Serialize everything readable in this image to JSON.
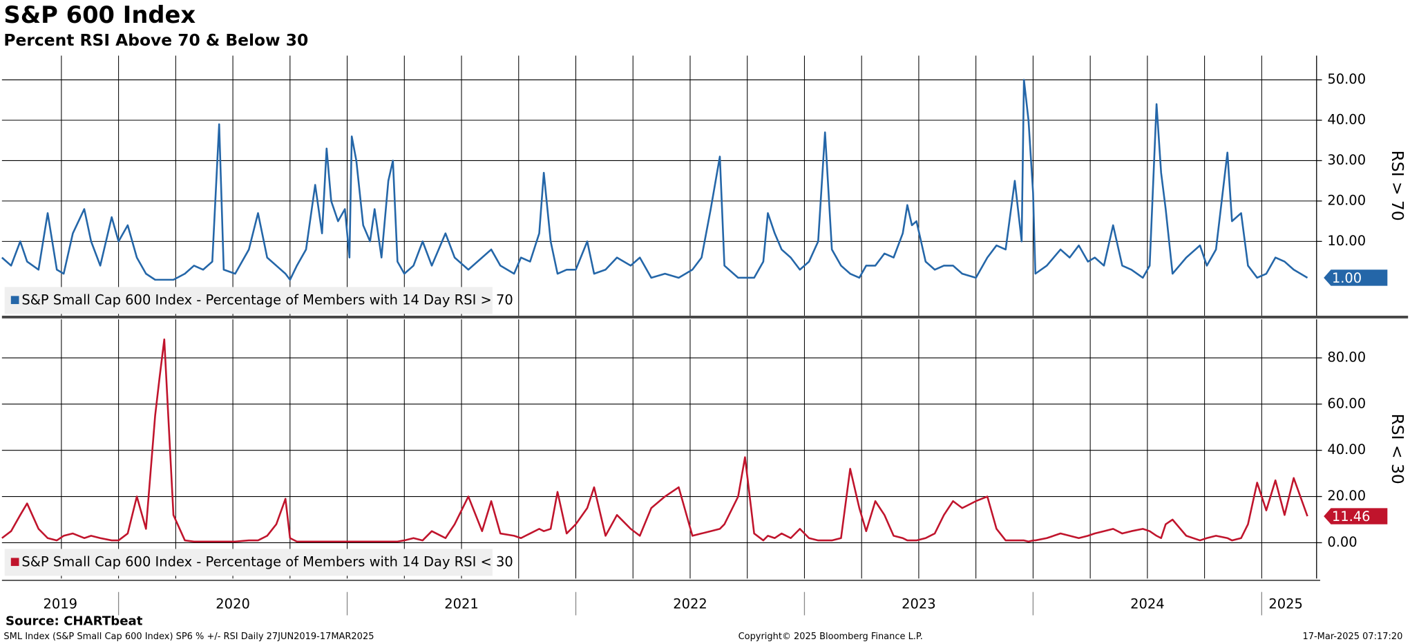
{
  "chart_data": [
    {
      "type": "line",
      "title": "S&P 600 Index",
      "subtitle": "Percent RSI Above 70 & Below 30",
      "ylabel": "RSI > 70",
      "xlim": [
        2019.49,
        2025.24
      ],
      "xgrid": [
        2019.75,
        2020.0,
        2020.25,
        2020.5,
        2020.75,
        2021.0,
        2021.25,
        2021.5,
        2021.75,
        2022.0,
        2022.25,
        2022.5,
        2022.75,
        2023.0,
        2023.25,
        2023.5,
        2023.75,
        2024.0,
        2024.25,
        2024.5,
        2024.75,
        2025.0
      ],
      "ylim": [
        -8.4,
        56
      ],
      "yticks": [
        {
          "value": 10,
          "label": "10.00"
        },
        {
          "value": 20,
          "label": "20.00"
        },
        {
          "value": 30,
          "label": "30.00"
        },
        {
          "value": 40,
          "label": "40.00"
        },
        {
          "value": 50,
          "label": "50.00"
        }
      ],
      "grid": true,
      "x": [
        2019.49,
        2019.53,
        2019.57,
        2019.6,
        2019.65,
        2019.69,
        2019.73,
        2019.76,
        2019.8,
        2019.85,
        2019.88,
        2019.92,
        2019.97,
        2020.0,
        2020.04,
        2020.08,
        2020.12,
        2020.16,
        2020.18,
        2020.2,
        2020.22,
        2020.24,
        2020.29,
        2020.33,
        2020.37,
        2020.41,
        2020.44,
        2020.46,
        2020.51,
        2020.57,
        2020.61,
        2020.65,
        2020.69,
        2020.73,
        2020.75,
        2020.78,
        2020.82,
        2020.86,
        2020.89,
        2020.91,
        2020.93,
        2020.96,
        2020.99,
        2021.01,
        2021.02,
        2021.04,
        2021.07,
        2021.1,
        2021.12,
        2021.15,
        2021.18,
        2021.2,
        2021.22,
        2021.25,
        2021.29,
        2021.33,
        2021.37,
        2021.43,
        2021.47,
        2021.53,
        2021.59,
        2021.63,
        2021.67,
        2021.73,
        2021.76,
        2021.8,
        2021.84,
        2021.86,
        2021.89,
        2021.92,
        2021.96,
        2022.0,
        2022.05,
        2022.08,
        2022.13,
        2022.18,
        2022.24,
        2022.28,
        2022.33,
        2022.39,
        2022.45,
        2022.51,
        2022.55,
        2022.59,
        2022.63,
        2022.65,
        2022.71,
        2022.74,
        2022.78,
        2022.82,
        2022.84,
        2022.87,
        2022.9,
        2022.94,
        2022.98,
        2023.02,
        2023.06,
        2023.09,
        2023.12,
        2023.16,
        2023.2,
        2023.24,
        2023.27,
        2023.31,
        2023.35,
        2023.39,
        2023.43,
        2023.45,
        2023.47,
        2023.49,
        2023.53,
        2023.57,
        2023.61,
        2023.65,
        2023.69,
        2023.75,
        2023.8,
        2023.84,
        2023.88,
        2023.92,
        2023.95,
        2023.96,
        2023.98,
        2024.0,
        2024.01,
        2024.06,
        2024.12,
        2024.16,
        2024.2,
        2024.24,
        2024.27,
        2024.31,
        2024.35,
        2024.39,
        2024.43,
        2024.48,
        2024.51,
        2024.54,
        2024.56,
        2024.58,
        2024.61,
        2024.67,
        2024.73,
        2024.76,
        2024.8,
        2024.85,
        2024.87,
        2024.91,
        2024.94,
        2024.98,
        2025.02,
        2025.06,
        2025.1,
        2025.14,
        2025.2
      ],
      "series": [
        {
          "name": "S&P Small Cap 600 Index - Percentage of Members with 14 Day RSI > 70",
          "color": "#2466a8",
          "last_label": "1.00",
          "values": [
            6,
            4,
            10,
            5,
            3,
            17,
            3,
            2,
            12,
            18,
            10,
            4,
            16,
            10,
            14,
            6,
            2,
            0.5,
            0.5,
            0.5,
            0.5,
            0.5,
            2,
            4,
            3,
            5,
            39,
            3,
            2,
            8,
            17,
            6,
            4,
            2,
            0.5,
            4,
            8,
            24,
            12,
            33,
            20,
            15,
            18,
            6,
            36,
            30,
            14,
            10,
            18,
            6,
            25,
            30,
            5,
            2,
            4,
            10,
            4,
            12,
            6,
            3,
            6,
            8,
            4,
            2,
            6,
            5,
            12,
            27,
            10,
            2,
            3,
            3,
            10,
            2,
            3,
            6,
            4,
            6,
            1,
            2,
            1,
            3,
            6,
            18,
            31,
            4,
            1,
            1,
            1,
            5,
            17,
            12,
            8,
            6,
            3,
            5,
            10,
            37,
            8,
            4,
            2,
            1,
            4,
            4,
            7,
            6,
            12,
            19,
            14,
            15,
            5,
            3,
            4,
            4,
            2,
            1,
            6,
            9,
            8,
            25,
            10,
            50,
            40,
            22,
            2,
            4,
            8,
            6,
            9,
            5,
            6,
            4,
            14,
            4,
            3,
            1,
            4,
            44,
            27,
            18,
            2,
            6,
            9,
            4,
            8,
            32,
            15,
            17,
            4,
            1,
            2,
            6,
            5,
            3,
            1
          ]
        }
      ]
    },
    {
      "type": "line",
      "ylabel": "RSI < 30",
      "xlim": [
        2019.49,
        2025.24
      ],
      "xgrid": [
        2019.75,
        2020.0,
        2020.25,
        2020.5,
        2020.75,
        2021.0,
        2021.25,
        2021.5,
        2021.75,
        2022.0,
        2022.25,
        2022.5,
        2022.75,
        2023.0,
        2023.25,
        2023.5,
        2023.75,
        2024.0,
        2024.25,
        2024.5,
        2024.75,
        2025.0
      ],
      "xticks": [
        {
          "value": 2019.745,
          "label": "2019"
        },
        {
          "value": 2020.5,
          "label": "2020"
        },
        {
          "value": 2021.5,
          "label": "2021"
        },
        {
          "value": 2022.5,
          "label": "2022"
        },
        {
          "value": 2023.5,
          "label": "2023"
        },
        {
          "value": 2024.5,
          "label": "2024"
        },
        {
          "value": 2025.105,
          "label": "2025"
        }
      ],
      "ylim": [
        -15.5,
        96.7
      ],
      "yticks": [
        {
          "value": 0,
          "label": "0.00"
        },
        {
          "value": 20,
          "label": "20.00"
        },
        {
          "value": 40,
          "label": "40.00"
        },
        {
          "value": 60,
          "label": "60.00"
        },
        {
          "value": 80,
          "label": "80.00"
        }
      ],
      "grid": true,
      "x": [
        2019.49,
        2019.53,
        2019.57,
        2019.6,
        2019.65,
        2019.69,
        2019.73,
        2019.76,
        2019.8,
        2019.85,
        2019.88,
        2019.92,
        2019.97,
        2020.0,
        2020.04,
        2020.08,
        2020.12,
        2020.16,
        2020.18,
        2020.2,
        2020.22,
        2020.24,
        2020.29,
        2020.33,
        2020.37,
        2020.41,
        2020.44,
        2020.46,
        2020.51,
        2020.57,
        2020.61,
        2020.65,
        2020.69,
        2020.73,
        2020.75,
        2020.78,
        2020.82,
        2020.86,
        2020.89,
        2020.91,
        2020.93,
        2020.96,
        2020.99,
        2021.01,
        2021.02,
        2021.04,
        2021.07,
        2021.1,
        2021.12,
        2021.15,
        2021.18,
        2021.2,
        2021.22,
        2021.25,
        2021.29,
        2021.33,
        2021.37,
        2021.43,
        2021.47,
        2021.53,
        2021.59,
        2021.63,
        2021.67,
        2021.73,
        2021.76,
        2021.8,
        2021.84,
        2021.86,
        2021.89,
        2021.92,
        2021.96,
        2022.0,
        2022.05,
        2022.08,
        2022.13,
        2022.18,
        2022.24,
        2022.28,
        2022.33,
        2022.39,
        2022.45,
        2022.51,
        2022.55,
        2022.59,
        2022.63,
        2022.65,
        2022.71,
        2022.74,
        2022.78,
        2022.82,
        2022.84,
        2022.87,
        2022.9,
        2022.94,
        2022.98,
        2023.02,
        2023.06,
        2023.09,
        2023.12,
        2023.16,
        2023.2,
        2023.24,
        2023.27,
        2023.31,
        2023.35,
        2023.39,
        2023.43,
        2023.45,
        2023.47,
        2023.49,
        2023.53,
        2023.57,
        2023.61,
        2023.65,
        2023.69,
        2023.75,
        2023.8,
        2023.84,
        2023.88,
        2023.92,
        2023.95,
        2023.96,
        2023.98,
        2024.0,
        2024.01,
        2024.06,
        2024.12,
        2024.16,
        2024.2,
        2024.24,
        2024.27,
        2024.31,
        2024.35,
        2024.39,
        2024.43,
        2024.48,
        2024.51,
        2024.54,
        2024.56,
        2024.58,
        2024.61,
        2024.67,
        2024.73,
        2024.76,
        2024.8,
        2024.85,
        2024.87,
        2024.91,
        2024.94,
        2024.98,
        2025.02,
        2025.06,
        2025.1,
        2025.14,
        2025.2
      ],
      "series": [
        {
          "name": "S&P Small Cap 600 Index - Percentage of Members with 14 Day RSI < 30",
          "color": "#c0142c",
          "last_label": "11.46",
          "values": [
            2,
            5,
            12,
            17,
            6,
            2,
            1,
            3,
            4,
            2,
            3,
            2,
            1,
            1,
            4,
            20,
            6,
            55,
            72,
            88,
            50,
            12,
            1,
            0.5,
            0.5,
            0.5,
            0.5,
            0.5,
            0.5,
            1,
            1,
            3,
            8,
            19,
            2,
            0.5,
            0.5,
            0.5,
            0.5,
            0.5,
            0.5,
            0.5,
            0.5,
            0.5,
            0.5,
            0.5,
            0.5,
            0.5,
            0.5,
            0.5,
            0.5,
            0.5,
            0.5,
            1,
            2,
            1,
            5,
            2,
            8,
            20,
            5,
            18,
            4,
            3,
            2,
            4,
            6,
            5,
            6,
            22,
            4,
            8,
            15,
            24,
            3,
            12,
            6,
            3,
            15,
            20,
            24,
            3,
            4,
            5,
            6,
            8,
            20,
            37,
            4,
            1,
            3,
            2,
            4,
            2,
            6,
            2,
            1,
            1,
            1,
            2,
            32,
            15,
            5,
            18,
            12,
            3,
            2,
            1,
            1,
            1,
            2,
            4,
            12,
            18,
            15,
            18,
            20,
            6,
            1,
            1,
            1,
            1,
            0.5,
            1,
            1,
            2,
            4,
            3,
            2,
            3,
            4,
            5,
            6,
            4,
            5,
            6,
            5,
            3,
            2,
            8,
            10,
            3,
            1,
            2,
            3,
            2,
            1,
            2,
            8,
            26,
            14,
            27,
            12,
            28,
            11.46
          ]
        }
      ]
    }
  ],
  "source": "Source: CHARTbeat",
  "footer": {
    "left": "SML Index (S&P Small Cap 600 Index) SP6 % +/- RSI  Daily 27JUN2019-17MAR2025",
    "center": "Copyright© 2025 Bloomberg Finance L.P.",
    "right": "17-Mar-2025 07:17:20"
  }
}
